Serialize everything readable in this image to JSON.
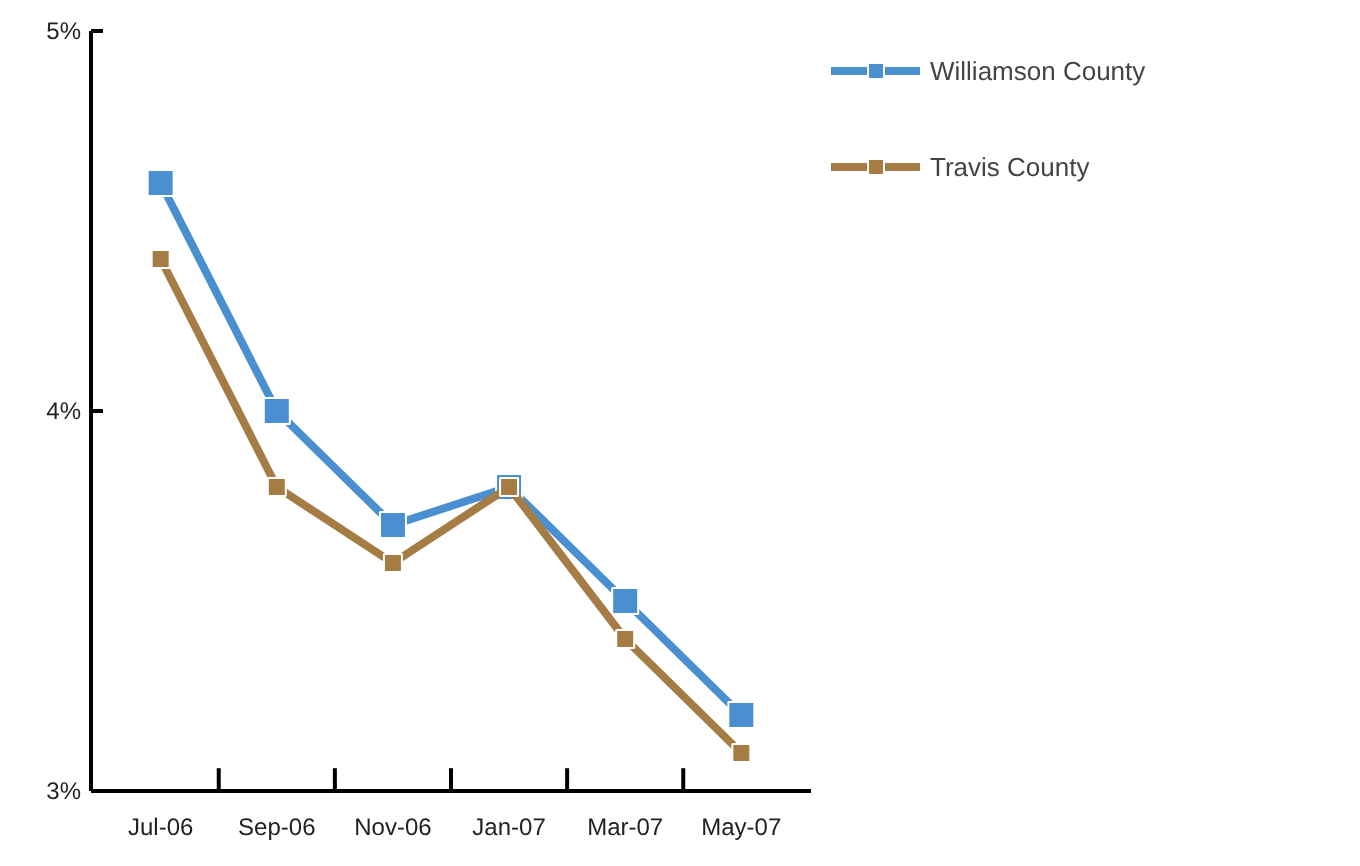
{
  "chart_data": {
    "type": "line",
    "categories": [
      "Jul-06",
      "Sep-06",
      "Nov-06",
      "Jan-07",
      "Mar-07",
      "May-07"
    ],
    "series": [
      {
        "name": "Williamson County",
        "color": "#4a90d0",
        "values": [
          4.6,
          4.0,
          3.7,
          3.8,
          3.5,
          3.2
        ]
      },
      {
        "name": "Travis County",
        "color": "#a67c45",
        "values": [
          4.4,
          3.8,
          3.6,
          3.8,
          3.4,
          3.1
        ]
      }
    ],
    "ylim": [
      3,
      5
    ],
    "yticks": [
      {
        "value": 3,
        "label": "3%"
      },
      {
        "value": 4,
        "label": "4%"
      },
      {
        "value": 5,
        "label": "5%"
      }
    ],
    "grid": false,
    "legend": "top right",
    "marker": "square",
    "line_style": "solid"
  }
}
